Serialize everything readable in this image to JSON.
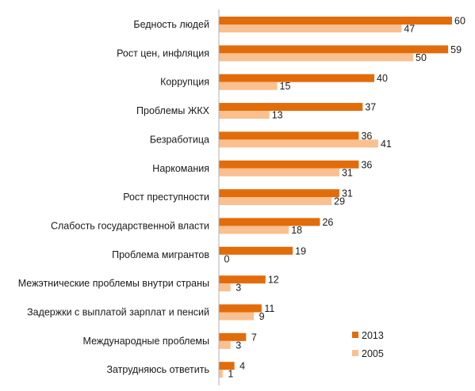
{
  "chart_data": {
    "type": "bar",
    "orientation": "horizontal",
    "categories": [
      "Бедность людей",
      "Рост цен, инфляция",
      "Коррупция",
      "Проблемы ЖКХ",
      "Безработица",
      "Наркомания",
      "Рост преступности",
      "Слабость государственной власти",
      "Проблема мигрантов",
      "Межэтнические проблемы внутри страны",
      "Задержки с выплатой зарплат и пенсий",
      "Международные проблемы",
      "Затрудняюсь ответить"
    ],
    "series": [
      {
        "name": "2013",
        "color": "#e36c0a",
        "values": [
          60,
          59,
          40,
          37,
          36,
          36,
          31,
          26,
          19,
          12,
          11,
          7,
          4
        ]
      },
      {
        "name": "2005",
        "color": "#fac090",
        "values": [
          47,
          50,
          15,
          13,
          41,
          31,
          29,
          18,
          0,
          3,
          9,
          3,
          1
        ]
      }
    ],
    "xlim": [
      0,
      60
    ],
    "grid": false,
    "axis_line_color": "#b0b0b0",
    "legend_position": "bottom-right"
  }
}
